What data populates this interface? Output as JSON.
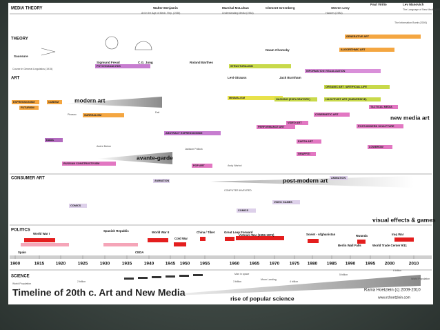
{
  "title": "Timeline of 20th c. Art and New Media",
  "credit": "Rama Hoetzlein (c) 2009-2010",
  "url": "www.rchoetzlein.com",
  "sections": [
    "MEDIA THEORY",
    "THEORY",
    "ART",
    "CONSUMER ART",
    "POLITICS",
    "SCIENCE"
  ],
  "theorists": [
    "Walter Benjamin",
    "Marshal McLuhan",
    "Clement Greenberg",
    "Steven Levy",
    "Paul Virilio",
    "Lev Manovich",
    "Saussure",
    "Sigmund Freud",
    "C.G. Jung",
    "Roland Barthes",
    "Noam Chomsky",
    "Levi-Strauss",
    "Jack Burnham"
  ],
  "movements": [
    {
      "label": "GENERATIVE ART",
      "color": "#f4a641"
    },
    {
      "label": "ALGORITHMIC ART",
      "color": "#f4a641"
    },
    {
      "label": "PSYCHOANALYSIS",
      "color": "#c77dd0"
    },
    {
      "label": "STRUCTURALISM",
      "color": "#c8d94a"
    },
    {
      "label": "INFORMATION VISUALIZATION",
      "color": "#d98fd9"
    },
    {
      "label": "ORGANIC ART / ARTIFICIAL LIFE",
      "color": "#c8d94a"
    },
    {
      "label": "EXPRESSIONISM",
      "color": "#f4a641"
    },
    {
      "label": "CUBISM",
      "color": "#f4a641"
    },
    {
      "label": "FUTURISM",
      "color": "#f4a641"
    },
    {
      "label": "MINIMALISM",
      "color": "#e8e24a"
    },
    {
      "label": "HACKING (EXPLORATORY)",
      "color": "#c8d94a"
    },
    {
      "label": "HACKTIVIST ART (SUBVERSIVE)",
      "color": "#c8d94a"
    },
    {
      "label": "TACTICAL MEDIA",
      "color": "#e277c2"
    },
    {
      "label": "CYBERNETIC ART",
      "color": "#e277c2"
    },
    {
      "label": "SURREALISM",
      "color": "#f4a641"
    },
    {
      "label": "VIDEO ART",
      "color": "#e277c2"
    },
    {
      "label": "PERFORMANCE ART",
      "color": "#e277c2"
    },
    {
      "label": "POST-MODERN SCULPTURE",
      "color": "#e277c2"
    },
    {
      "label": "DADA",
      "color": "#b36bbf"
    },
    {
      "label": "ABSTRACT EXPRESSIONISM",
      "color": "#c77dd0"
    },
    {
      "label": "EARTH ART",
      "color": "#e277c2"
    },
    {
      "label": "LOWBROW",
      "color": "#e277c2"
    },
    {
      "label": "GRAFFITI",
      "color": "#e277c2"
    },
    {
      "label": "RUSSIAN CONSTRUCTIVISM",
      "color": "#e277c2"
    },
    {
      "label": "POP ART",
      "color": "#e277c2"
    },
    {
      "label": "ANIMATION",
      "color": "#ddd0ea"
    },
    {
      "label": "COMICS",
      "color": "#ddd0ea"
    },
    {
      "label": "VIDEO GAMES",
      "color": "#ddd0ea"
    },
    {
      "label": "ANIMATION",
      "color": "#ddd0ea"
    },
    {
      "label": "COMICS",
      "color": "#ddd0ea"
    }
  ],
  "big_labels": [
    "modern art",
    "avante-garde",
    "new media art",
    "post-modern art",
    "visual effects & games",
    "rise of popular science"
  ],
  "notes": [
    "Art in the Age of Mech. Rep. (1936)",
    "Understanding Media (1964)",
    "The Information Bomb (2000)",
    "The Language of New Media (2001)",
    "Course in General Linguistics (1915)",
    "Jackson Pollock",
    "Andy Warhol",
    "Picasso",
    "Dali",
    "Andre Breton",
    "Hackers (1984)",
    "COMPUTER INVENTED",
    "Man in space",
    "Moon Landing",
    "2 billion",
    "3 billion",
    "4 billion",
    "5 billion",
    "6 billion",
    "World Population",
    "World Population"
  ],
  "politics": [
    "World War I",
    "Spanish Republic",
    "World War II",
    "Cold War",
    "China / Tibet",
    "Great Leap Forward",
    "Vietnam War (1959-1975)",
    "Soviet - Afghanistan",
    "Berlin Wall Falls",
    "Rwanda",
    "World Trade Center 9/11",
    "Iraq War",
    "Spain",
    "CEDA"
  ],
  "years": [
    1900,
    1915,
    1920,
    1925,
    1930,
    1935,
    1940,
    1945,
    1950,
    1955,
    1960,
    1965,
    1970,
    1975,
    1980,
    1985,
    1990,
    1995,
    2000,
    2010
  ]
}
